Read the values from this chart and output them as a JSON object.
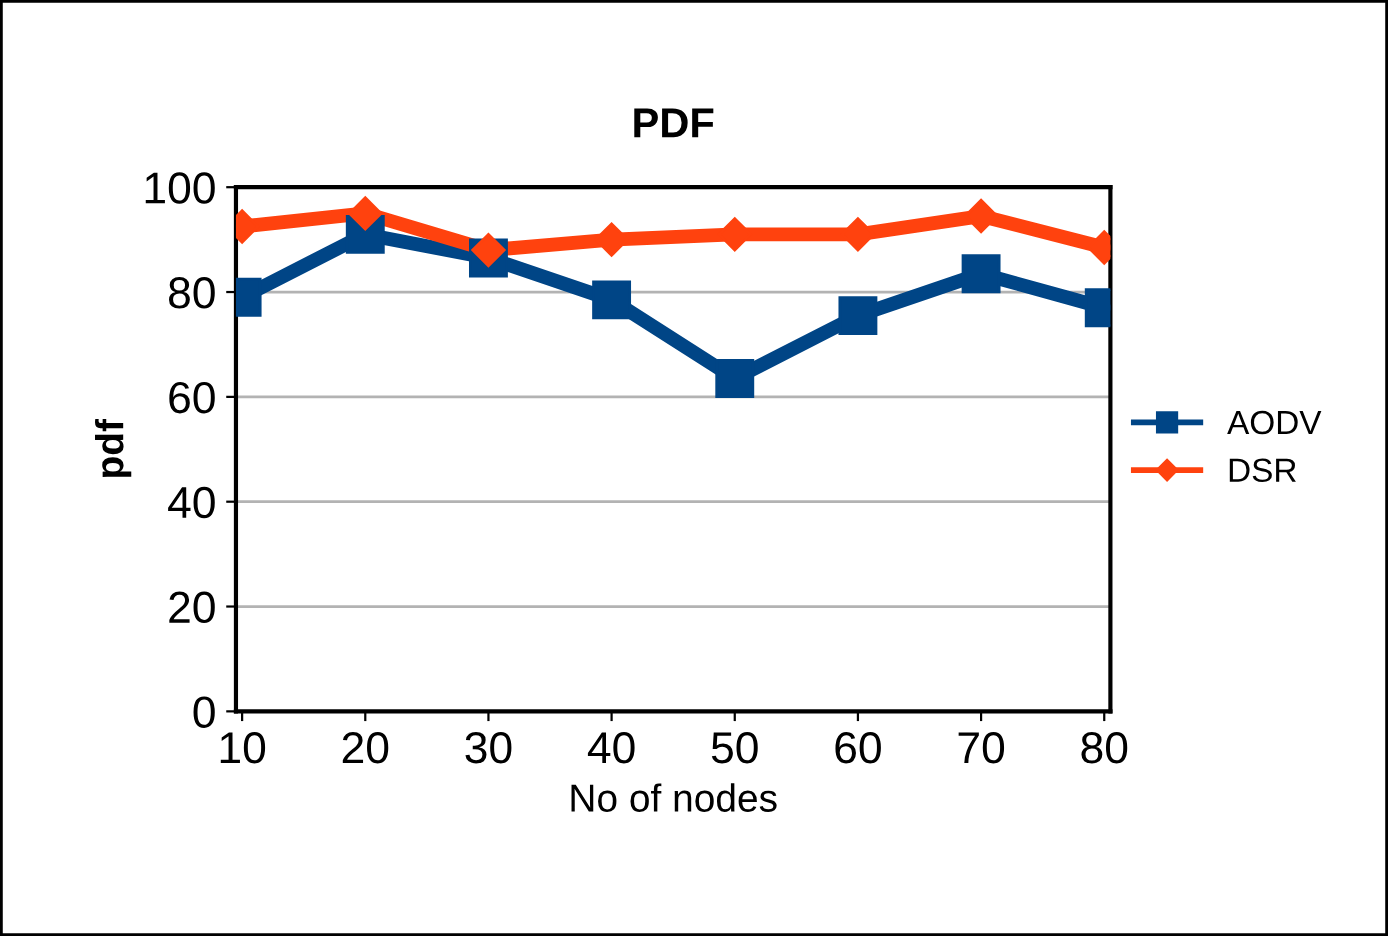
{
  "chart_data": {
    "type": "line",
    "title": "PDF",
    "xlabel": "No of nodes",
    "ylabel": "pdf",
    "categories": [
      "10",
      "20",
      "30",
      "40",
      "50",
      "60",
      "70",
      "80"
    ],
    "series": [
      {
        "name": "AODV",
        "color": "#004586",
        "marker": "square",
        "values": [
          79,
          91,
          86.5,
          78.5,
          63.5,
          75.5,
          83.5,
          77
        ]
      },
      {
        "name": "DSR",
        "color": "#ff420e",
        "marker": "diamond",
        "values": [
          92.5,
          95,
          88,
          90,
          91,
          91,
          94.5,
          88.5
        ]
      }
    ],
    "ylim": [
      0,
      100
    ],
    "yticks": [
      0,
      20,
      40,
      60,
      80,
      100
    ],
    "grid": "y",
    "legend": "right",
    "line_style": "solid"
  }
}
